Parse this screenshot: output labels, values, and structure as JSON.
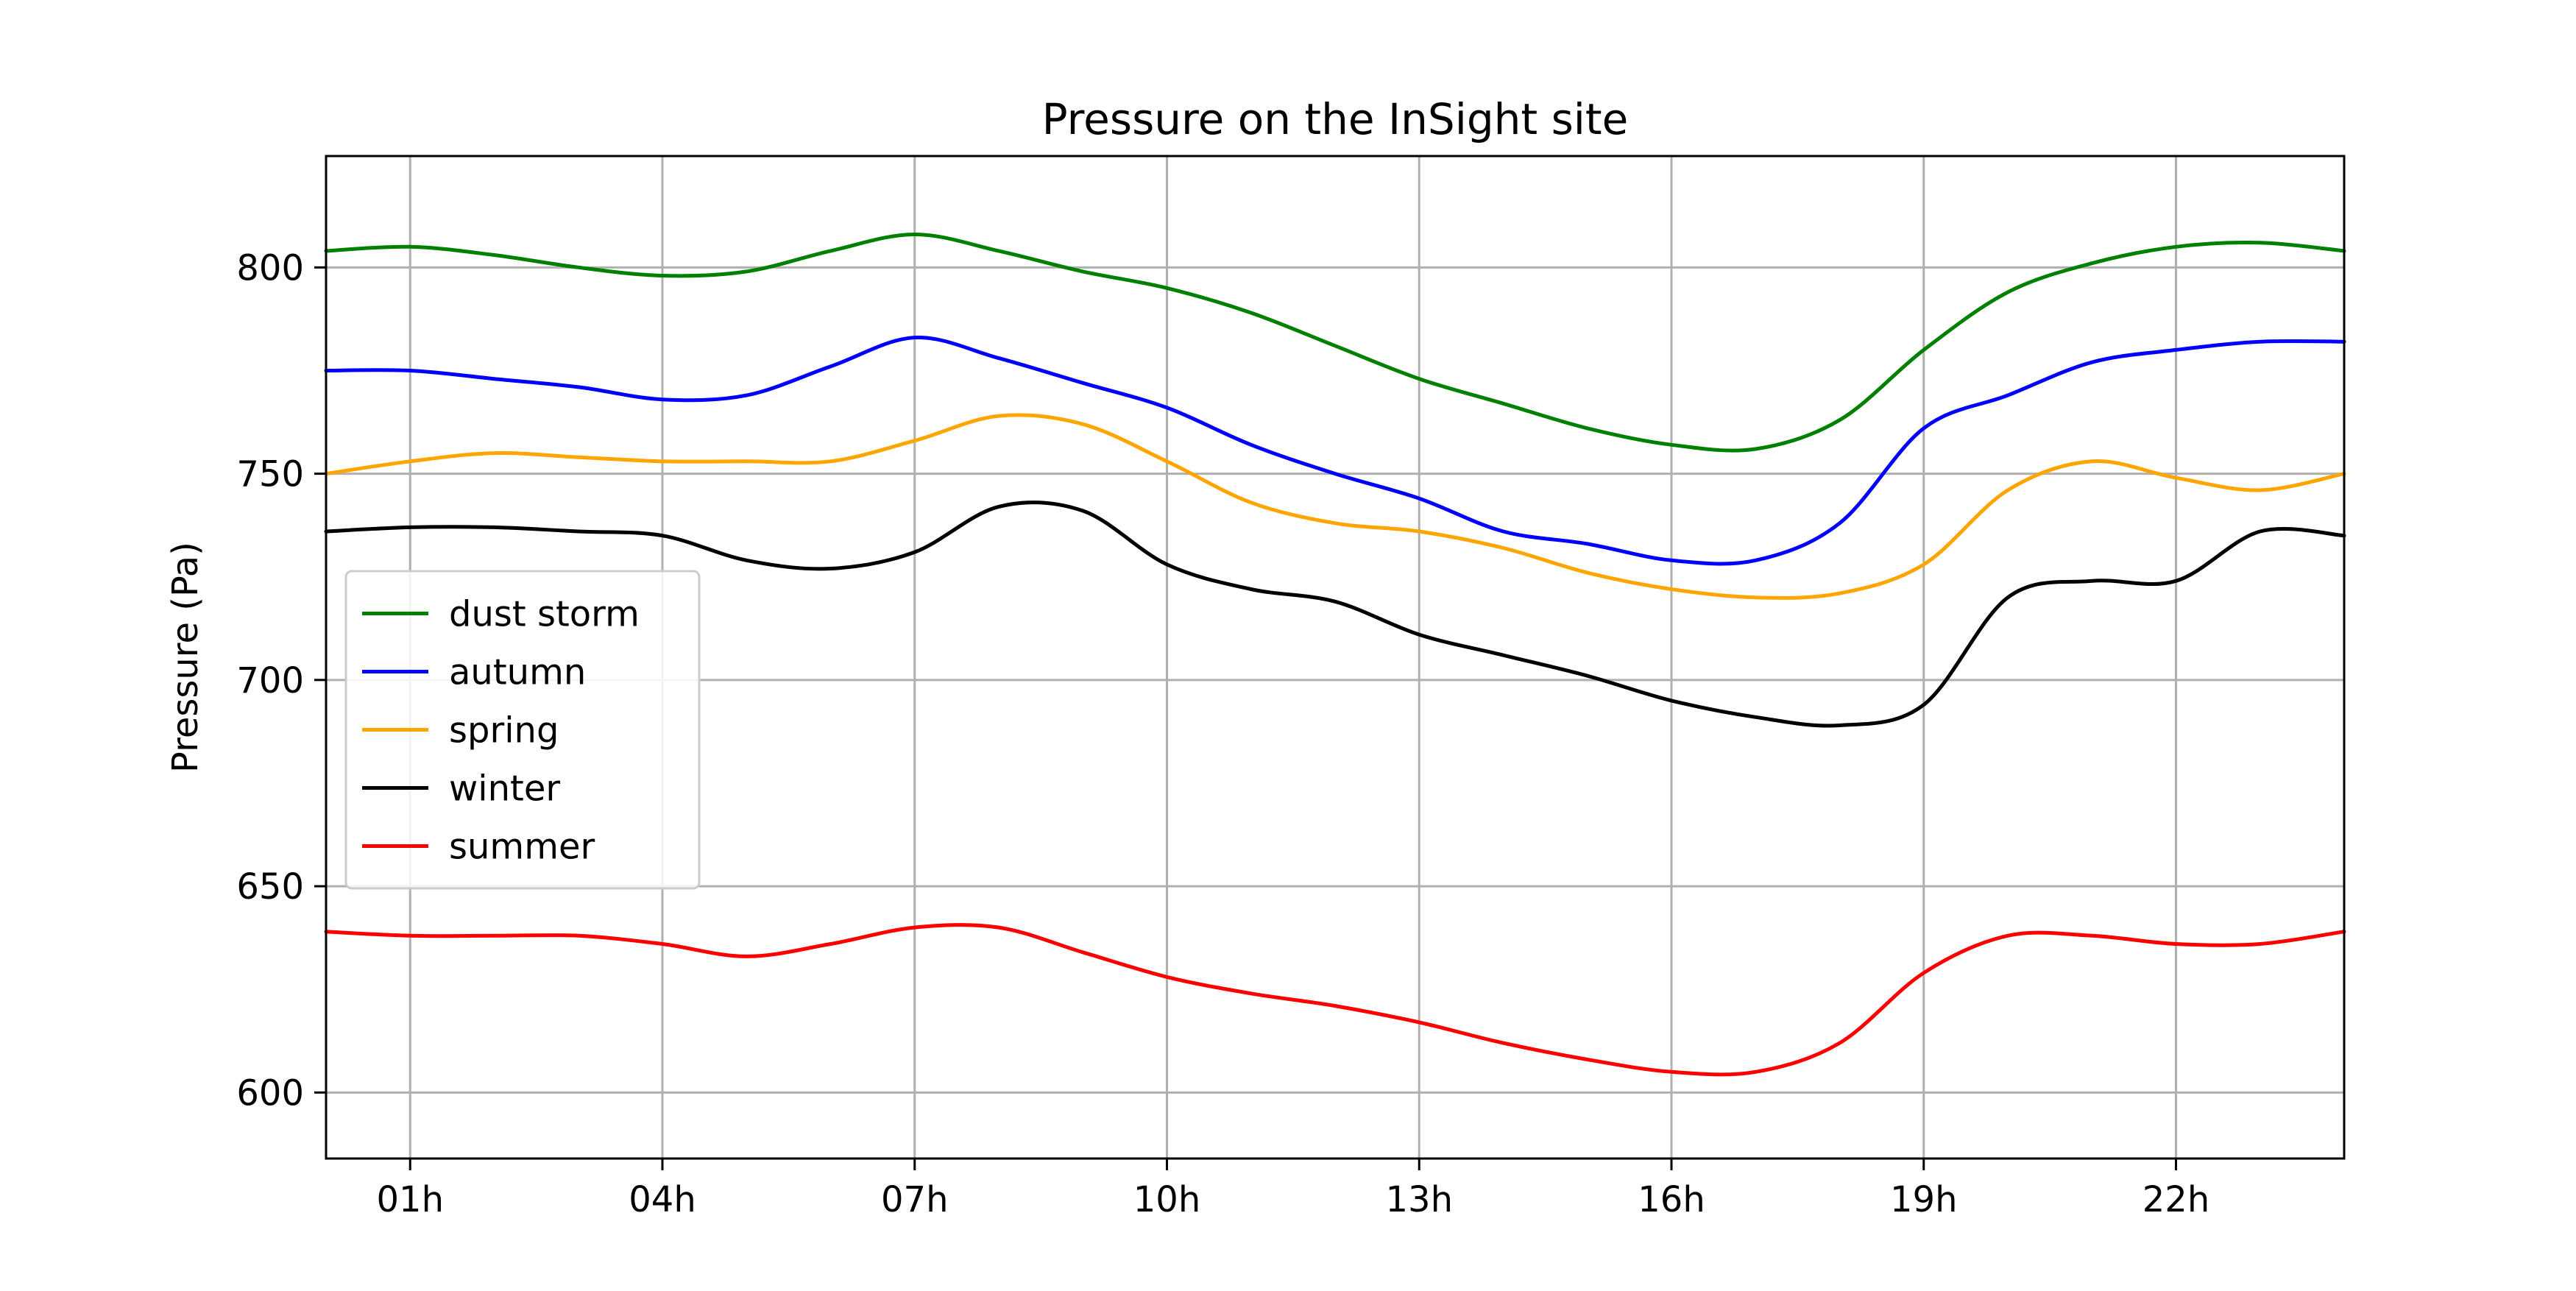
{
  "chart_data": {
    "type": "line",
    "title": "Pressure on the InSight site",
    "xlabel": "",
    "ylabel": "Pressure (Pa)",
    "x_ticks": [
      "01h",
      "04h",
      "07h",
      "10h",
      "13h",
      "16h",
      "19h",
      "22h"
    ],
    "x_tick_values": [
      1,
      4,
      7,
      10,
      13,
      16,
      19,
      22
    ],
    "xlim": [
      0,
      24
    ],
    "y_ticks": [
      600,
      650,
      700,
      750,
      800
    ],
    "ylim": [
      584,
      827
    ],
    "grid": true,
    "legend_position": "center-left",
    "x": [
      0,
      1,
      2,
      3,
      4,
      5,
      6,
      7,
      8,
      9,
      10,
      11,
      12,
      13,
      14,
      15,
      16,
      17,
      18,
      19,
      20,
      21,
      22,
      23,
      24
    ],
    "series": [
      {
        "name": "dust storm",
        "color": "#008000",
        "values": [
          804,
          805,
          803,
          800,
          798,
          799,
          804,
          808,
          804,
          799,
          795,
          789,
          781,
          773,
          767,
          761,
          757,
          756,
          763,
          780,
          794,
          801,
          805,
          806,
          804
        ]
      },
      {
        "name": "autumn",
        "color": "#0000ff",
        "values": [
          775,
          775,
          773,
          771,
          768,
          769,
          776,
          783,
          778,
          772,
          766,
          757,
          750,
          744,
          736,
          733,
          729,
          729,
          738,
          761,
          769,
          777,
          780,
          782,
          782
        ]
      },
      {
        "name": "spring",
        "color": "#ffa500",
        "values": [
          750,
          753,
          755,
          754,
          753,
          753,
          753,
          758,
          764,
          762,
          753,
          743,
          738,
          736,
          732,
          726,
          722,
          720,
          721,
          728,
          746,
          753,
          749,
          746,
          750
        ]
      },
      {
        "name": "winter",
        "color": "#000000",
        "values": [
          736,
          737,
          737,
          736,
          735,
          729,
          727,
          731,
          742,
          741,
          728,
          722,
          719,
          711,
          706,
          701,
          695,
          691,
          689,
          694,
          720,
          724,
          724,
          736,
          735
        ]
      },
      {
        "name": "summer",
        "color": "#ff0000",
        "values": [
          639,
          638,
          638,
          638,
          636,
          633,
          636,
          640,
          640,
          634,
          628,
          624,
          621,
          617,
          612,
          608,
          605,
          605,
          612,
          629,
          638,
          638,
          636,
          636,
          639
        ]
      }
    ]
  }
}
